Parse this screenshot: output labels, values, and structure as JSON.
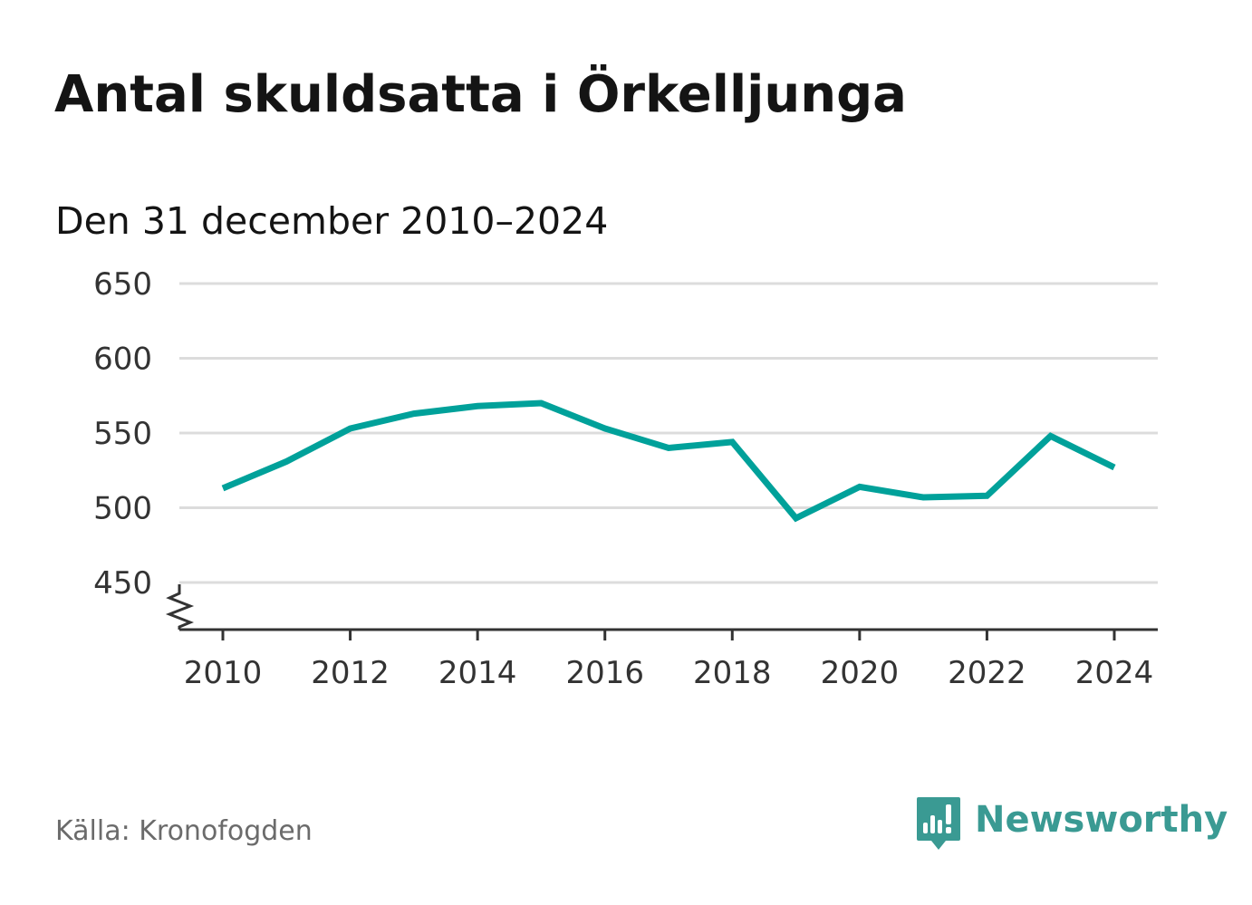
{
  "header": {
    "title": "Antal skuldsatta i Örkelljunga",
    "subtitle": "Den 31 december 2010–2024"
  },
  "chart_data": {
    "type": "line",
    "title": "Antal skuldsatta i Örkelljunga",
    "subtitle": "Den 31 december 2010–2024",
    "xlabel": "",
    "ylabel": "",
    "x": [
      2010,
      2011,
      2012,
      2013,
      2014,
      2015,
      2016,
      2017,
      2018,
      2019,
      2020,
      2021,
      2022,
      2023,
      2024
    ],
    "series": [
      {
        "values": [
          513,
          531,
          553,
          563,
          568,
          570,
          553,
          540,
          544,
          493,
          514,
          507,
          508,
          548,
          527
        ],
        "color": "#00a19a"
      }
    ],
    "x_ticks": [
      "2010",
      "2012",
      "2014",
      "2016",
      "2018",
      "2020",
      "2022",
      "2024"
    ],
    "y_ticks": [
      "650",
      "600",
      "550",
      "500",
      "450"
    ],
    "xlim": [
      2010,
      2024
    ],
    "ylim": [
      450,
      650
    ],
    "y_axis_break": true,
    "grid": true
  },
  "footer": {
    "source": "Källa: Kronofogden",
    "brand": "Newsworthy",
    "brand_icon": "newsworthy-logo-icon",
    "brand_color": "#3a9a93"
  }
}
